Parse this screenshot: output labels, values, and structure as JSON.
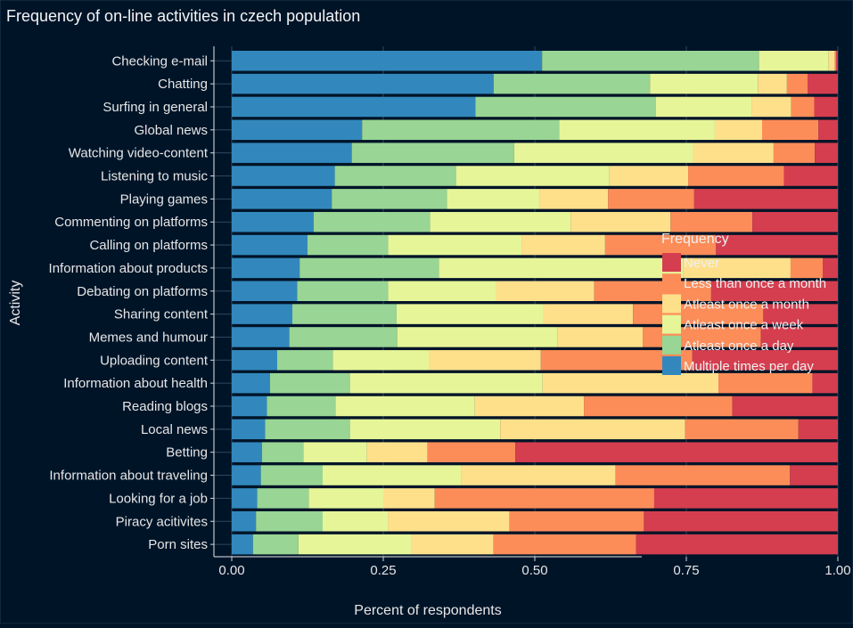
{
  "chart_data": {
    "type": "bar",
    "orientation": "horizontal",
    "stacked": true,
    "title": "Frequency of on-line activities in czech population",
    "xlabel": "Percent of respondents",
    "ylabel": "Activity",
    "xlim": [
      0,
      1
    ],
    "xticks": [
      "0.00",
      "0.25",
      "0.50",
      "0.75",
      "1.00"
    ],
    "xtick_values": [
      0,
      0.25,
      0.5,
      0.75,
      1.0
    ],
    "grid": true,
    "legend_title": "Frequency",
    "legend_position": "right",
    "categories": [
      "Checking e-mail",
      "Chatting",
      "Surfing in general",
      "Global news",
      "Watching video-content",
      "Listening to music",
      "Playing games",
      "Commenting on platforms",
      "Calling on platforms",
      "Information about products",
      "Debating on platforms",
      "Sharing content",
      "Memes and humour",
      "Uploading content",
      "Information about health",
      "Reading blogs",
      "Local news",
      "Betting",
      "Information about traveling",
      "Looking for a job",
      "Piracy acitivites",
      "Porn sites"
    ],
    "series": [
      {
        "name": "Multiple times per day",
        "color": "#3288bd",
        "values": [
          0.512,
          0.432,
          0.402,
          0.215,
          0.198,
          0.17,
          0.165,
          0.135,
          0.125,
          0.112,
          0.108,
          0.1,
          0.095,
          0.075,
          0.063,
          0.058,
          0.055,
          0.05,
          0.048,
          0.042,
          0.04,
          0.035
        ]
      },
      {
        "name": "Atleast once a day",
        "color": "#99d594",
        "values": [
          0.358,
          0.258,
          0.298,
          0.325,
          0.268,
          0.2,
          0.19,
          0.192,
          0.133,
          0.23,
          0.15,
          0.172,
          0.178,
          0.092,
          0.132,
          0.113,
          0.14,
          0.068,
          0.102,
          0.085,
          0.11,
          0.075
        ]
      },
      {
        "name": "Atleast once a week",
        "color": "#e6f598",
        "values": [
          0.115,
          0.178,
          0.158,
          0.257,
          0.295,
          0.253,
          0.153,
          0.232,
          0.22,
          0.403,
          0.178,
          0.242,
          0.265,
          0.158,
          0.318,
          0.23,
          0.248,
          0.105,
          0.228,
          0.123,
          0.108,
          0.187
        ]
      },
      {
        "name": "Atleast once a month",
        "color": "#fee08b",
        "values": [
          0.01,
          0.048,
          0.065,
          0.078,
          0.133,
          0.13,
          0.113,
          0.165,
          0.138,
          0.177,
          0.162,
          0.148,
          0.14,
          0.185,
          0.29,
          0.18,
          0.305,
          0.1,
          0.255,
          0.085,
          0.2,
          0.135
        ]
      },
      {
        "name": "Less than once a month",
        "color": "#fc8d59",
        "values": [
          0.002,
          0.034,
          0.038,
          0.093,
          0.068,
          0.158,
          0.142,
          0.135,
          0.183,
          0.053,
          0.193,
          0.215,
          0.195,
          0.25,
          0.155,
          0.245,
          0.187,
          0.145,
          0.288,
          0.362,
          0.222,
          0.235
        ]
      },
      {
        "name": "Never",
        "color": "#d53e4f",
        "values": [
          0.003,
          0.05,
          0.039,
          0.032,
          0.038,
          0.089,
          0.237,
          0.141,
          0.201,
          0.025,
          0.209,
          0.123,
          0.127,
          0.24,
          0.042,
          0.174,
          0.065,
          0.532,
          0.079,
          0.303,
          0.32,
          0.333
        ]
      }
    ]
  }
}
